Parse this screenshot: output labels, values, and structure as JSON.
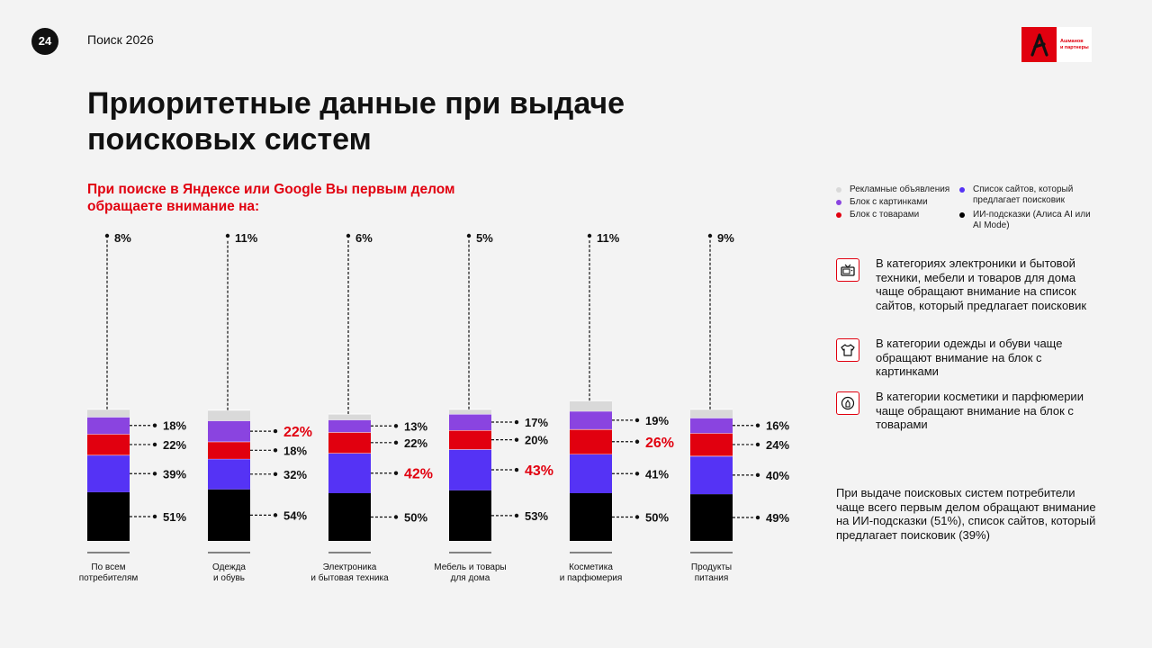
{
  "header": {
    "page_number": "24",
    "section_name": "Поиск 2026",
    "logo_text_line1": "Ашманов",
    "logo_text_line2": "и партнеры"
  },
  "title": "Приоритетные данные при выдаче поисковых систем",
  "subtitle": "При поиске в Яндексе или Google Вы первым делом обращаете внимание на:",
  "colors": {
    "ads": "#d9d9d9",
    "images": "#8a44e0",
    "products": "#e1000f",
    "sites": "#5533f5",
    "ai": "#000000",
    "highlight": "#e1000f"
  },
  "legend": [
    {
      "key": "ads",
      "label": "Рекламные объявления"
    },
    {
      "key": "images",
      "label": "Блок с картинками"
    },
    {
      "key": "products",
      "label": "Блок с товарами"
    },
    {
      "key": "sites",
      "label": "Список сайтов, который предлагает поисковик"
    },
    {
      "key": "ai",
      "label": "ИИ-подсказки (Алиса AI или AI Mode)"
    }
  ],
  "insights": [
    {
      "icon": "tv-icon",
      "text": "В категориях электроники и бытовой техники, мебели и товаров для дома чаще обращают внимание на список сайтов, который предлагает поисковик"
    },
    {
      "icon": "tshirt-icon",
      "text": "В категории одежды и обуви чаще обращают внимание на блок с картинками"
    },
    {
      "icon": "cosmetics-icon",
      "text": "В категории косметики и парфюмерии чаще обращают внимание на блок с товарами"
    }
  ],
  "summary": "При выдаче поисковых систем потребители чаще всего первым делом обращают внимание на ИИ-подсказки (51%), список сайтов, который предлагает поисковик (39%)",
  "chart_data": {
    "type": "bar",
    "stacked": true,
    "unit": "%",
    "categories": [
      "По всем\nпотребителям",
      "Одежда\nи обувь",
      "Электроника\nи бытовая техника",
      "Мебель и товары\nдля дома",
      "Косметика\nи парфюмерия",
      "Продукты\nпитания"
    ],
    "series": [
      {
        "name": "ИИ-подсказки (Алиса AI или AI Mode)",
        "key": "ai",
        "values": [
          51,
          54,
          50,
          53,
          50,
          49
        ]
      },
      {
        "name": "Список сайтов, который предлагает поисковик",
        "key": "sites",
        "values": [
          39,
          32,
          42,
          43,
          41,
          40
        ]
      },
      {
        "name": "Блок с товарами",
        "key": "products",
        "values": [
          22,
          18,
          22,
          20,
          26,
          24
        ]
      },
      {
        "name": "Блок с картинками",
        "key": "images",
        "values": [
          18,
          22,
          13,
          17,
          19,
          16
        ]
      },
      {
        "name": "Рекламные объявления",
        "key": "ads",
        "values": [
          8,
          11,
          6,
          5,
          11,
          9
        ]
      }
    ],
    "highlights": [
      {
        "series": "Блок с картинками",
        "category": "Одежда\nи обувь"
      },
      {
        "series": "Список сайтов, который предлагает поисковик",
        "category": "Электроника\nи бытовая техника"
      },
      {
        "series": "Список сайтов, который предлагает поисковик",
        "category": "Мебель и товары\nдля дома"
      },
      {
        "series": "Блок с товарами",
        "category": "Косметика\nи парфюмерия"
      }
    ]
  }
}
